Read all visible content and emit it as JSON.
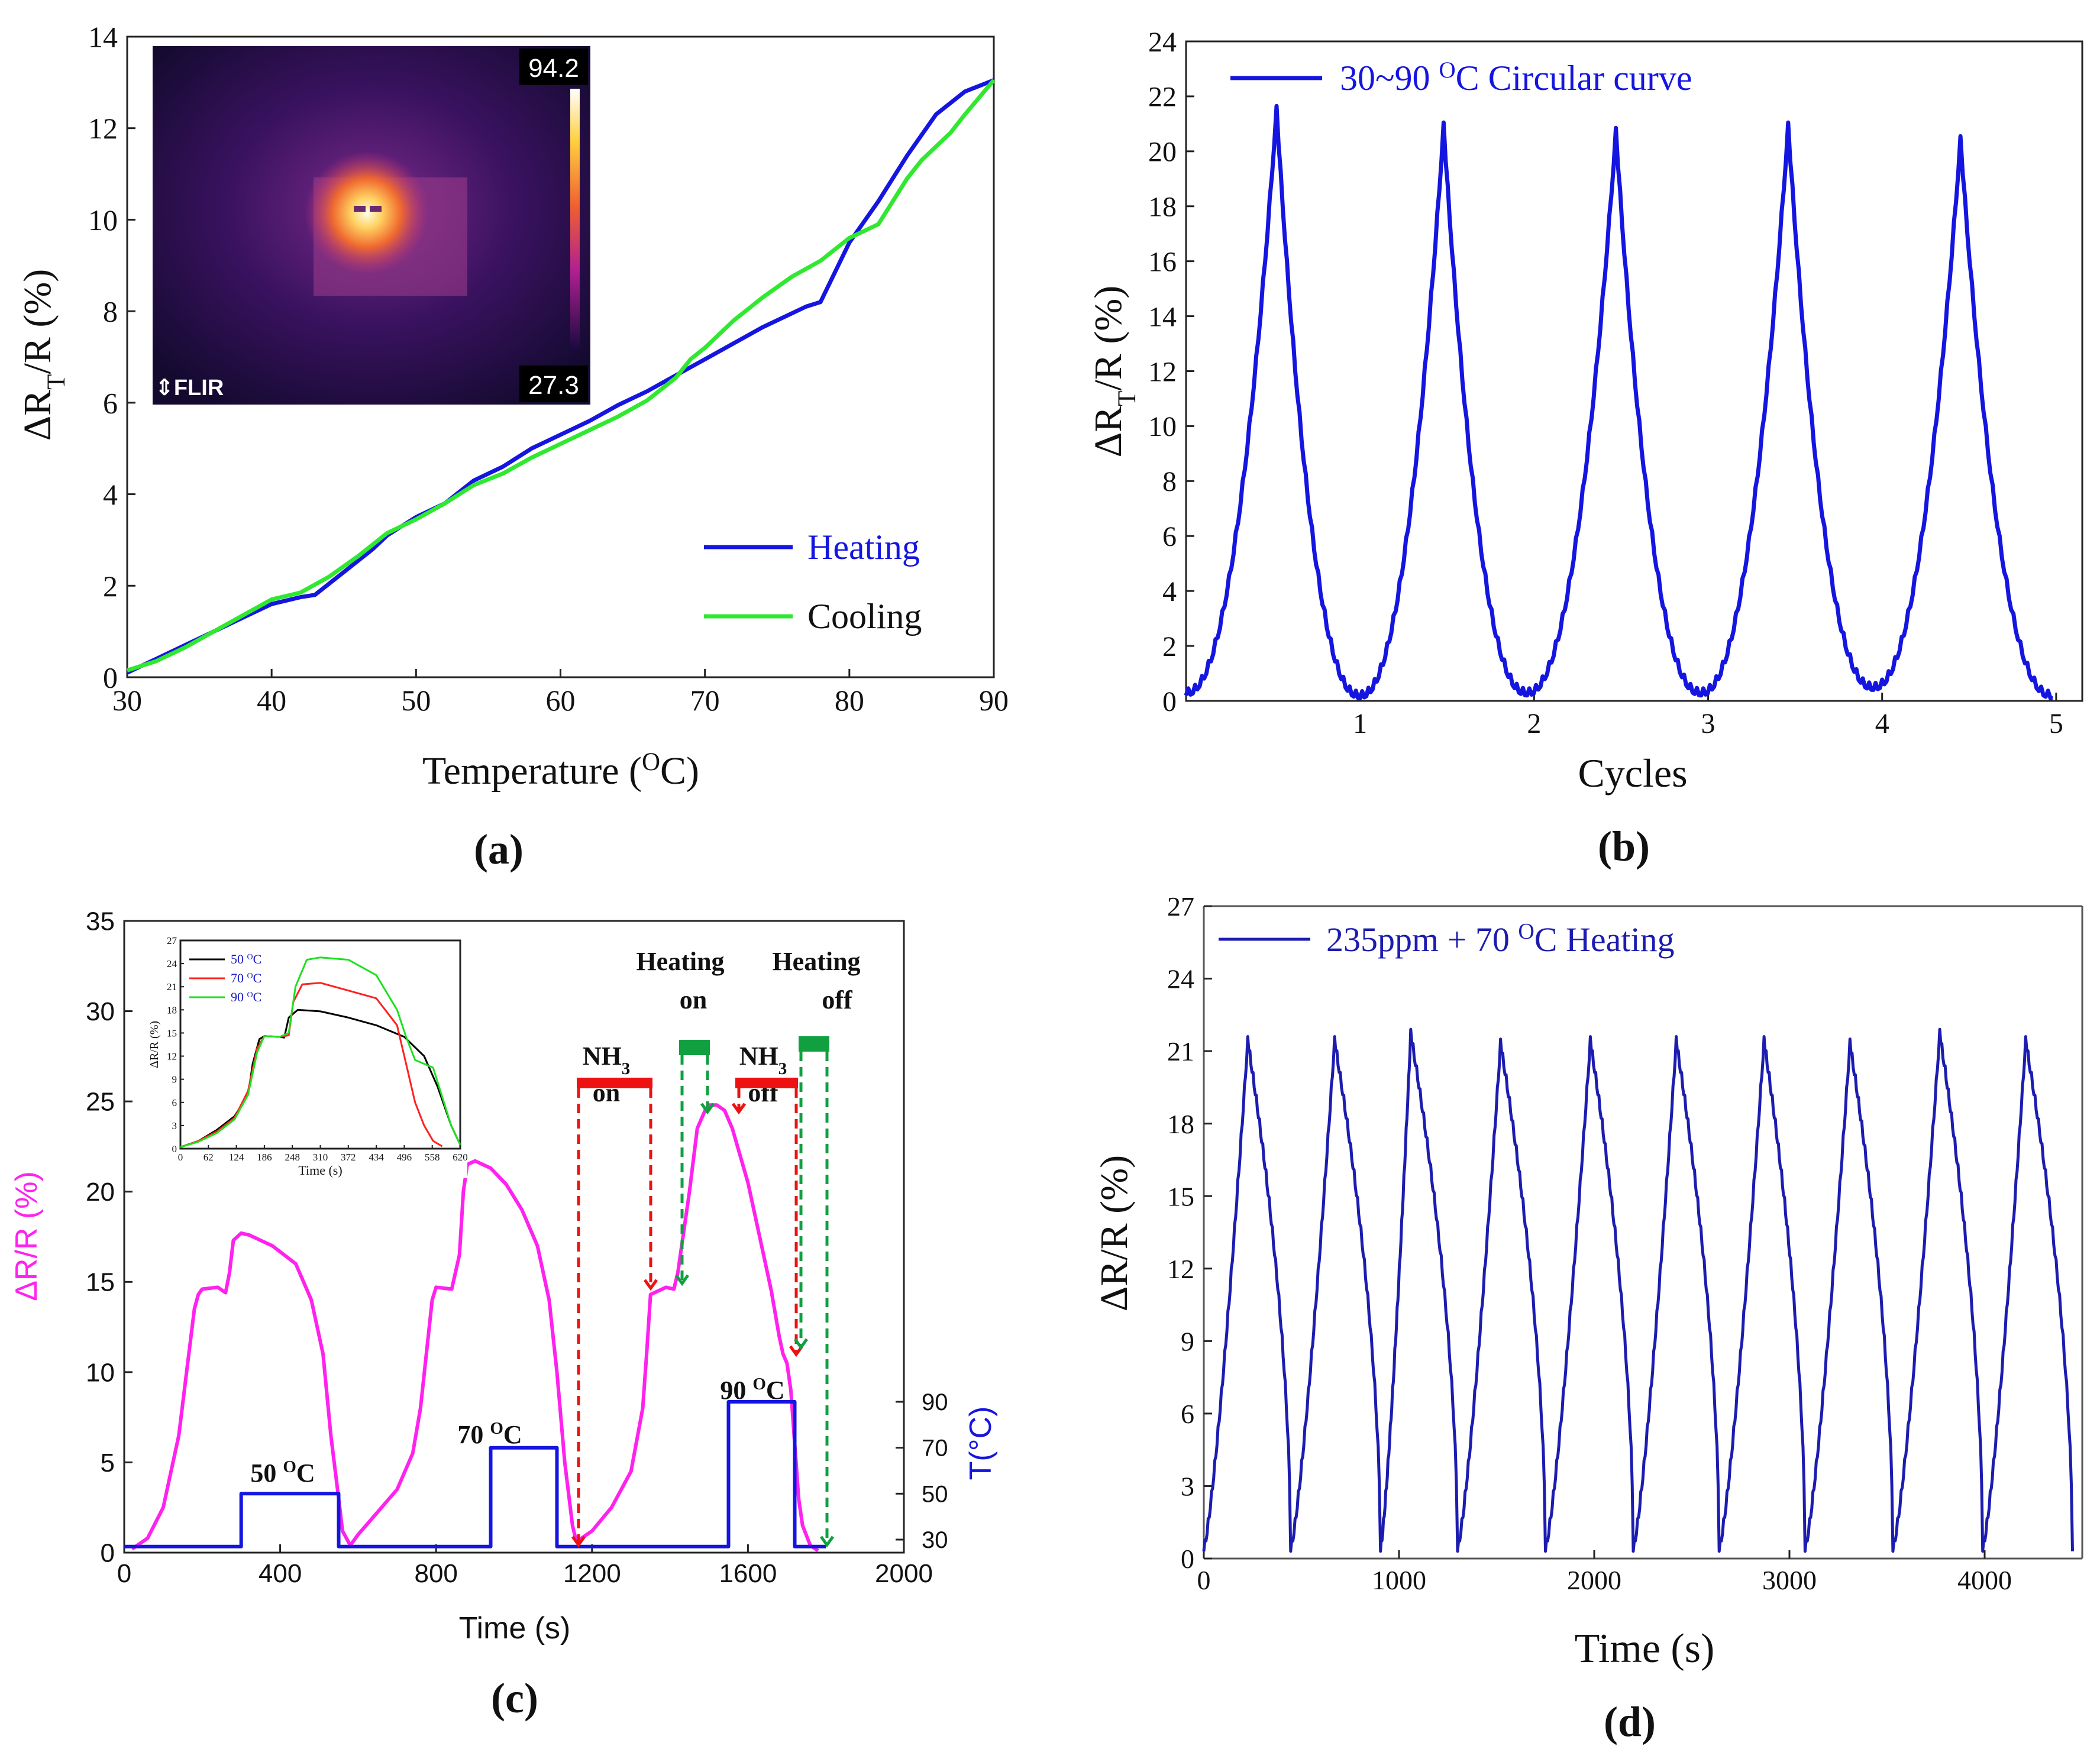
{
  "chart_data": [
    {
      "panel": "a",
      "type": "line",
      "caption": "(a)",
      "xlabel": "Temperature (OC)",
      "ylabel": "ΔRT/R (%)",
      "xlim": [
        30,
        90
      ],
      "ylim": [
        0,
        14
      ],
      "xticks": [
        30,
        40,
        50,
        60,
        70,
        80,
        90
      ],
      "yticks": [
        0,
        2,
        4,
        6,
        8,
        10,
        12,
        14
      ],
      "legend_position": "bottom-right",
      "series": [
        {
          "name": "Heating",
          "color": "#1515e0",
          "x": [
            30,
            32,
            34,
            36,
            38,
            40,
            42,
            43,
            45,
            47,
            48,
            50,
            52,
            54,
            56,
            58,
            60,
            62,
            64,
            66,
            68,
            70,
            72,
            74,
            76,
            77,
            78,
            80,
            82,
            84,
            86,
            88,
            90
          ],
          "y": [
            0.1,
            0.4,
            0.7,
            1.0,
            1.3,
            1.6,
            1.75,
            1.8,
            2.3,
            2.8,
            3.1,
            3.5,
            3.8,
            4.3,
            4.6,
            5.0,
            5.3,
            5.6,
            5.95,
            6.25,
            6.6,
            6.95,
            7.3,
            7.65,
            7.95,
            8.1,
            8.2,
            9.5,
            10.4,
            11.4,
            12.3,
            12.8,
            13.05
          ]
        },
        {
          "name": "Cooling",
          "color": "#30e830",
          "x": [
            30,
            32,
            34,
            36,
            38,
            40,
            42,
            44,
            46,
            48,
            50,
            52,
            54,
            56,
            58,
            60,
            62,
            64,
            66,
            68,
            69,
            70,
            72,
            74,
            76,
            78,
            80,
            82,
            84,
            85,
            87,
            88,
            90
          ],
          "y": [
            0.15,
            0.35,
            0.65,
            1.0,
            1.35,
            1.7,
            1.85,
            2.2,
            2.65,
            3.15,
            3.45,
            3.8,
            4.2,
            4.45,
            4.8,
            5.1,
            5.4,
            5.7,
            6.05,
            6.55,
            6.95,
            7.2,
            7.8,
            8.3,
            8.75,
            9.1,
            9.6,
            9.9,
            10.9,
            11.3,
            11.9,
            12.3,
            13.05
          ]
        }
      ],
      "inset": {
        "type": "thermal-image",
        "max_label": "94.2",
        "min_label": "27.3",
        "brand": "FLIR"
      }
    },
    {
      "panel": "b",
      "type": "line",
      "caption": "(b)",
      "xlabel": "Cycles",
      "ylabel": "ΔRT/R (%)",
      "xlim": [
        0,
        5.15
      ],
      "ylim": [
        0,
        24
      ],
      "xticks": [
        1,
        2,
        3,
        4,
        5
      ],
      "yticks": [
        0,
        2,
        4,
        6,
        8,
        10,
        12,
        14,
        16,
        18,
        20,
        22,
        24
      ],
      "legend_position": "top-left",
      "series": [
        {
          "name": "30~90 OC  Circular curve",
          "color": "#1515e0",
          "cycles": [
            {
              "start": 0.0,
              "peak_x": 0.52,
              "peak_y": 21.4,
              "end": 1.0,
              "start_y": 0.2,
              "end_y": 0.1
            },
            {
              "start": 1.0,
              "peak_x": 1.48,
              "peak_y": 20.8,
              "end": 1.96,
              "start_y": 0.1,
              "end_y": 0.2
            },
            {
              "start": 1.96,
              "peak_x": 2.47,
              "peak_y": 20.6,
              "end": 2.96,
              "start_y": 0.2,
              "end_y": 0.2
            },
            {
              "start": 2.96,
              "peak_x": 3.46,
              "peak_y": 20.8,
              "end": 3.95,
              "start_y": 0.2,
              "end_y": 0.4
            },
            {
              "start": 3.95,
              "peak_x": 4.45,
              "peak_y": 20.3,
              "end": 4.98,
              "start_y": 0.4,
              "end_y": 0.1
            }
          ]
        }
      ]
    },
    {
      "panel": "c",
      "type": "line",
      "caption": "(c)",
      "xlabel": "Time (s)",
      "ylabel": "ΔR/R (%)",
      "ylabel_right": "T(°C)",
      "xlim": [
        0,
        2000
      ],
      "ylim": [
        0,
        35
      ],
      "xticks": [
        0,
        400,
        800,
        1200,
        1600,
        2000
      ],
      "yticks": [
        0,
        5,
        10,
        15,
        20,
        25,
        30,
        35
      ],
      "right_yticks": [
        30,
        50,
        70,
        90
      ],
      "series": [
        {
          "name": "ΔR/R",
          "color": "#ff22ee",
          "x": [
            20,
            60,
            100,
            140,
            160,
            180,
            190,
            200,
            240,
            260,
            270,
            280,
            300,
            320,
            380,
            440,
            480,
            510,
            530,
            550,
            560,
            580,
            600,
            640,
            700,
            740,
            760,
            780,
            790,
            800,
            840,
            860,
            870,
            880,
            900,
            940,
            980,
            1020,
            1060,
            1090,
            1110,
            1130,
            1150,
            1160,
            1200,
            1250,
            1300,
            1330,
            1340,
            1350,
            1390,
            1410,
            1420,
            1450,
            1470,
            1490,
            1500,
            1520,
            1540,
            1560,
            1600,
            1630,
            1660,
            1680,
            1690,
            1700,
            1710,
            1720,
            1730,
            1740,
            1760,
            1780
          ],
          "y": [
            0.2,
            0.8,
            2.5,
            6.5,
            10.0,
            13.5,
            14.3,
            14.6,
            14.7,
            14.4,
            15.5,
            17.3,
            17.7,
            17.6,
            17.0,
            16.0,
            14.0,
            11.0,
            6.5,
            3.0,
            1.2,
            0.4,
            1.0,
            2.0,
            3.5,
            5.5,
            8.0,
            12.0,
            14.0,
            14.7,
            14.6,
            16.5,
            20.0,
            21.5,
            21.7,
            21.3,
            20.4,
            19.0,
            17.0,
            14.0,
            10.0,
            5.0,
            1.5,
            0.6,
            1.2,
            2.5,
            4.5,
            8.0,
            11.0,
            14.3,
            14.7,
            14.6,
            15.5,
            20.0,
            23.5,
            24.5,
            24.8,
            24.8,
            24.5,
            23.5,
            20.5,
            17.5,
            14.5,
            12.0,
            11.0,
            10.5,
            9.0,
            6.0,
            3.0,
            1.5,
            0.4,
            0.1
          ]
        },
        {
          "name": "T(°C)",
          "color": "#1515e0",
          "axis": "right",
          "x": [
            0,
            300,
            300,
            550,
            550,
            940,
            940,
            1110,
            1110,
            1550,
            1550,
            1720,
            1720,
            1800
          ],
          "y": [
            27,
            27,
            50,
            50,
            27,
            27,
            70,
            70,
            27,
            27,
            90,
            90,
            27,
            27
          ]
        }
      ],
      "annotations": {
        "temp_labels": [
          "50 OC",
          "70 OC",
          "90 OC"
        ],
        "nh3_on": "NH3 on",
        "nh3_off": "NH3 off",
        "heating_on": "Heating on",
        "heating_off": "Heating off"
      },
      "inset": {
        "type": "line",
        "xlabel": "Time (s)",
        "ylabel": "ΔR/R (%)",
        "xlim": [
          0,
          620
        ],
        "ylim": [
          0,
          27
        ],
        "xticks": [
          0,
          62,
          124,
          186,
          248,
          310,
          372,
          434,
          496,
          558,
          620
        ],
        "yticks": [
          0,
          3,
          6,
          9,
          12,
          15,
          18,
          21,
          24,
          27
        ],
        "series": [
          {
            "name": "50 OC",
            "color": "#000000",
            "x": [
              0,
              40,
              80,
              120,
              150,
              160,
              175,
              186,
              220,
              230,
              240,
              260,
              310,
              372,
              434,
              496,
              540,
              570,
              600,
              620
            ],
            "y": [
              0.2,
              1.0,
              2.4,
              4.2,
              7.0,
              11.0,
              14.2,
              14.6,
              14.5,
              14.4,
              17.0,
              18.0,
              17.8,
              17.0,
              16.0,
              14.5,
              12.0,
              8.0,
              3.0,
              0.5
            ]
          },
          {
            "name": "70 OC",
            "color": "#ff2020",
            "x": [
              0,
              40,
              80,
              120,
              150,
              170,
              186,
              220,
              240,
              250,
              270,
              310,
              372,
              434,
              480,
              500,
              520,
              540,
              560,
              580
            ],
            "y": [
              0.2,
              1.0,
              2.2,
              4.0,
              7.5,
              13.0,
              14.6,
              14.5,
              14.7,
              19.0,
              21.3,
              21.5,
              20.5,
              19.5,
              16.0,
              11.0,
              6.0,
              3.0,
              1.0,
              0.3
            ]
          },
          {
            "name": "90 OC",
            "color": "#20e020",
            "x": [
              0,
              40,
              80,
              120,
              150,
              170,
              186,
              220,
              240,
              255,
              280,
              310,
              372,
              434,
              480,
              500,
              520,
              540,
              560,
              600,
              620
            ],
            "y": [
              0.2,
              0.9,
              2.0,
              3.8,
              7.0,
              12.5,
              14.6,
              14.5,
              15.0,
              21.0,
              24.5,
              24.8,
              24.5,
              22.5,
              18.0,
              14.5,
              11.5,
              11.0,
              10.5,
              3.0,
              0.5
            ]
          }
        ]
      }
    },
    {
      "panel": "d",
      "type": "line",
      "caption": "(d)",
      "xlabel": "Time (s)",
      "ylabel": "ΔR/R (%)",
      "xlim": [
        0,
        4500
      ],
      "ylim": [
        0,
        27
      ],
      "xticks": [
        0,
        1000,
        2000,
        3000,
        4000
      ],
      "yticks": [
        0,
        3,
        6,
        9,
        12,
        15,
        18,
        21,
        24,
        27
      ],
      "legend_position": "top-left",
      "series": [
        {
          "name": "235ppm + 70 OC Heating",
          "color": "#1c1cb0",
          "cycles": [
            {
              "start": 0,
              "peak_x": 225,
              "peak_y": 21.3,
              "end": 445
            },
            {
              "start": 445,
              "peak_x": 670,
              "peak_y": 21.3,
              "end": 905
            },
            {
              "start": 905,
              "peak_x": 1060,
              "peak_y": 21.6,
              "end": 1300
            },
            {
              "start": 1300,
              "peak_x": 1520,
              "peak_y": 21.2,
              "end": 1750
            },
            {
              "start": 1750,
              "peak_x": 1980,
              "peak_y": 21.3,
              "end": 2200
            },
            {
              "start": 2200,
              "peak_x": 2420,
              "peak_y": 21.3,
              "end": 2640
            },
            {
              "start": 2640,
              "peak_x": 2870,
              "peak_y": 21.3,
              "end": 3080
            },
            {
              "start": 3080,
              "peak_x": 3310,
              "peak_y": 21.2,
              "end": 3530
            },
            {
              "start": 3530,
              "peak_x": 3770,
              "peak_y": 21.6,
              "end": 3990
            },
            {
              "start": 3990,
              "peak_x": 4210,
              "peak_y": 21.3,
              "end": 4450
            }
          ]
        }
      ]
    }
  ]
}
